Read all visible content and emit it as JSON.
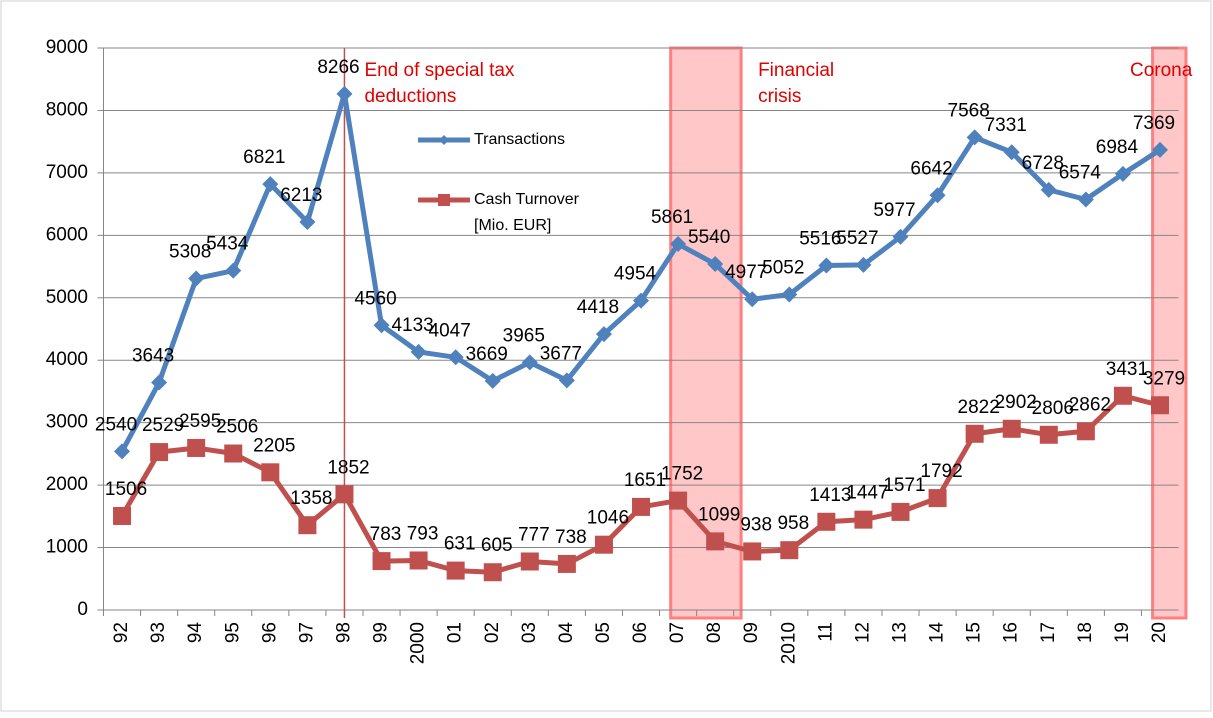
{
  "chart_data": {
    "type": "line",
    "categories": [
      "92",
      "93",
      "94",
      "95",
      "96",
      "97",
      "98",
      "99",
      "2000",
      "01",
      "02",
      "03",
      "04",
      "05",
      "06",
      "07",
      "08",
      "09",
      "2010",
      "11",
      "12",
      "13",
      "14",
      "15",
      "16",
      "17",
      "18",
      "19",
      "20"
    ],
    "series": [
      {
        "name": "Transactions",
        "color": "#4f81bd",
        "marker": "diamond",
        "values": [
          2540,
          3643,
          5308,
          5434,
          6821,
          6213,
          8266,
          4560,
          4133,
          4047,
          3669,
          3965,
          3677,
          4418,
          4954,
          5861,
          5540,
          4977,
          5052,
          5516,
          5527,
          5977,
          6642,
          7568,
          7331,
          6728,
          6574,
          6984,
          7369
        ]
      },
      {
        "name": "Cash Turnover [Mio. EUR]",
        "color": "#c0504d",
        "marker": "square",
        "values": [
          1506,
          2529,
          2595,
          2506,
          2205,
          1358,
          1852,
          783,
          793,
          631,
          605,
          777,
          738,
          1046,
          1651,
          1752,
          1099,
          938,
          958,
          1413,
          1447,
          1571,
          1792,
          2822,
          2902,
          2806,
          2862,
          3431,
          3279
        ]
      }
    ],
    "ylim": [
      0,
      9000
    ],
    "yticks": [
      0,
      1000,
      2000,
      3000,
      4000,
      5000,
      6000,
      7000,
      8000,
      9000
    ],
    "grid": true,
    "annotations": [
      {
        "text": "End of special tax deductions",
        "from": "98",
        "style": "line"
      },
      {
        "text": "Financial crisis",
        "from": "07",
        "to": "08",
        "style": "band"
      },
      {
        "text": "Corona",
        "from": "20",
        "to": "20",
        "style": "band"
      }
    ]
  }
}
